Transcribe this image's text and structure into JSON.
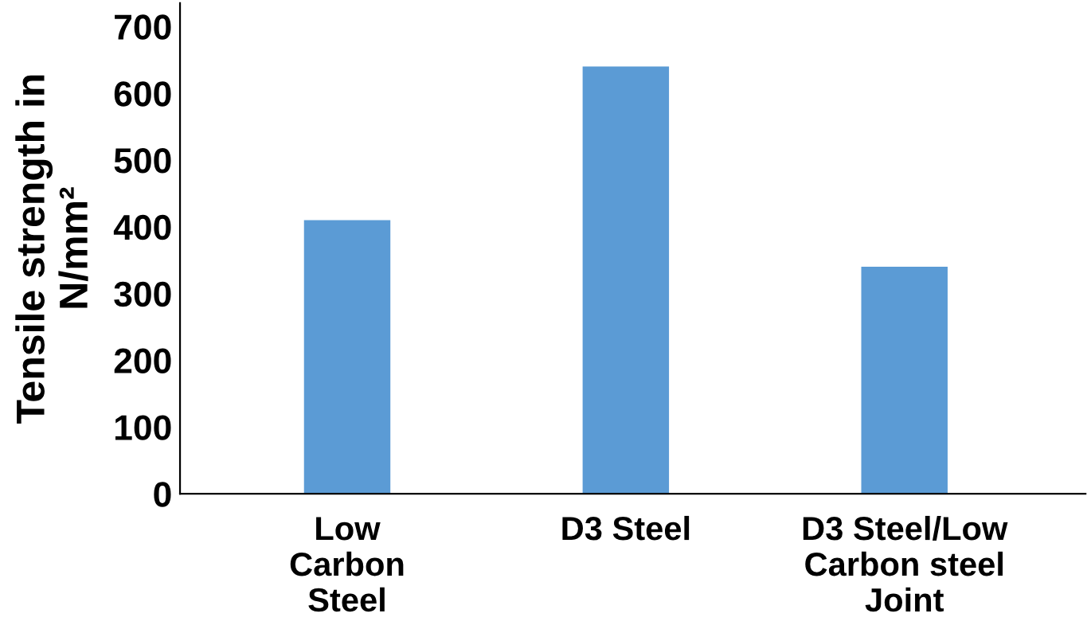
{
  "chart_data": {
    "type": "bar",
    "ylabel": "Tensile strength in\nN/mm²",
    "categories": [
      "Low\nCarbon\nSteel",
      "D3 Steel",
      "D3 Steel/Low\nCarbon steel\nJoint"
    ],
    "values": [
      410,
      640,
      340
    ],
    "color": "#5b9bd5",
    "ylim": [
      0,
      735
    ],
    "yticks": [
      0,
      100,
      200,
      300,
      400,
      500,
      600,
      700
    ],
    "grid": false
  }
}
